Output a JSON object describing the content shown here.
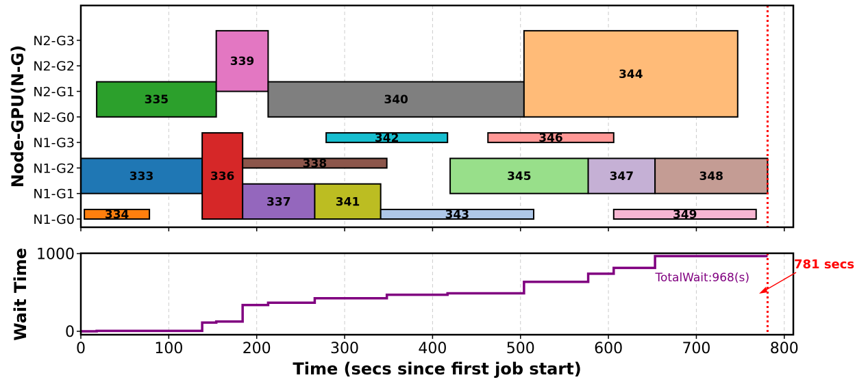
{
  "chart_data": [
    {
      "type": "gantt",
      "ylabel": "Node-GPU(N-G)",
      "y_categories": [
        "N1-G0",
        "N1-G1",
        "N1-G2",
        "N1-G3",
        "N2-G0",
        "N2-G1",
        "N2-G2",
        "N2-G3"
      ],
      "xlim": [
        0,
        820
      ],
      "grid": "vertical dashed",
      "jobs": [
        {
          "id": "333",
          "start": 0,
          "end": 138,
          "gpus": [
            "N1-G1",
            "N1-G2"
          ],
          "color": "#1f77b4"
        },
        {
          "id": "334",
          "start": 4,
          "end": 78,
          "gpus": [
            "N1-G0"
          ],
          "color": "#ff7f0e"
        },
        {
          "id": "335",
          "start": 18,
          "end": 154,
          "gpus": [
            "N2-G0",
            "N2-G1"
          ],
          "color": "#2ca02c"
        },
        {
          "id": "336",
          "start": 138,
          "end": 184,
          "gpus": [
            "N1-G0",
            "N1-G1",
            "N1-G2",
            "N1-G3"
          ],
          "color": "#d62728"
        },
        {
          "id": "337",
          "start": 184,
          "end": 266,
          "gpus": [
            "N1-G0",
            "N1-G1"
          ],
          "color": "#9467bd"
        },
        {
          "id": "338",
          "start": 184,
          "end": 348,
          "gpus": [
            "N1-G2"
          ],
          "color": "#8c564b"
        },
        {
          "id": "339",
          "start": 154,
          "end": 213,
          "gpus": [
            "N2-G1",
            "N2-G2",
            "N2-G3"
          ],
          "color": "#e377c2"
        },
        {
          "id": "340",
          "start": 213,
          "end": 504,
          "gpus": [
            "N2-G0",
            "N2-G1"
          ],
          "color": "#7f7f7f"
        },
        {
          "id": "341",
          "start": 266,
          "end": 341,
          "gpus": [
            "N1-G0",
            "N1-G1"
          ],
          "color": "#bcbd22"
        },
        {
          "id": "342",
          "start": 279,
          "end": 417,
          "gpus": [
            "N1-G3"
          ],
          "color": "#17becf"
        },
        {
          "id": "343",
          "start": 341,
          "end": 515,
          "gpus": [
            "N1-G0"
          ],
          "color": "#aec7e8"
        },
        {
          "id": "344",
          "start": 504,
          "end": 747,
          "gpus": [
            "N2-G0",
            "N2-G1",
            "N2-G2",
            "N2-G3"
          ],
          "color": "#ffbb78"
        },
        {
          "id": "345",
          "start": 420,
          "end": 577,
          "gpus": [
            "N1-G1",
            "N1-G2"
          ],
          "color": "#98df8a"
        },
        {
          "id": "346",
          "start": 463,
          "end": 606,
          "gpus": [
            "N1-G3"
          ],
          "color": "#ff9896"
        },
        {
          "id": "347",
          "start": 577,
          "end": 653,
          "gpus": [
            "N1-G1",
            "N1-G2"
          ],
          "color": "#c5b0d5"
        },
        {
          "id": "348",
          "start": 653,
          "end": 781,
          "gpus": [
            "N1-G1",
            "N1-G2"
          ],
          "color": "#c49c94"
        },
        {
          "id": "349",
          "start": 606,
          "end": 768,
          "gpus": [
            "N1-G0"
          ],
          "color": "#f7b6d2"
        }
      ],
      "end_line_x": 781
    },
    {
      "type": "line",
      "step": true,
      "ylabel": "Wait Time",
      "xlabel": "Time (secs since first job start)",
      "xlim": [
        0,
        820
      ],
      "ylim": [
        0,
        1000
      ],
      "x_ticks": [
        0,
        100,
        200,
        300,
        400,
        500,
        600,
        700,
        800
      ],
      "y_ticks": [
        0,
        1000
      ],
      "grid": "vertical dashed",
      "series": [
        {
          "color": "#800080",
          "x": [
            0,
            18,
            138,
            154,
            184,
            213,
            266,
            348,
            417,
            504,
            577,
            606,
            653,
            781
          ],
          "y": [
            0,
            6,
            112,
            126,
            338,
            368,
            425,
            470,
            489,
            637,
            741,
            816,
            968,
            968
          ]
        }
      ],
      "annotations": {
        "total_wait_text": "TotalWait:968(s)",
        "end_label": "781 secs",
        "end_x": 781,
        "total_wait_color": "#800080",
        "end_color": "#ff0000"
      }
    }
  ]
}
